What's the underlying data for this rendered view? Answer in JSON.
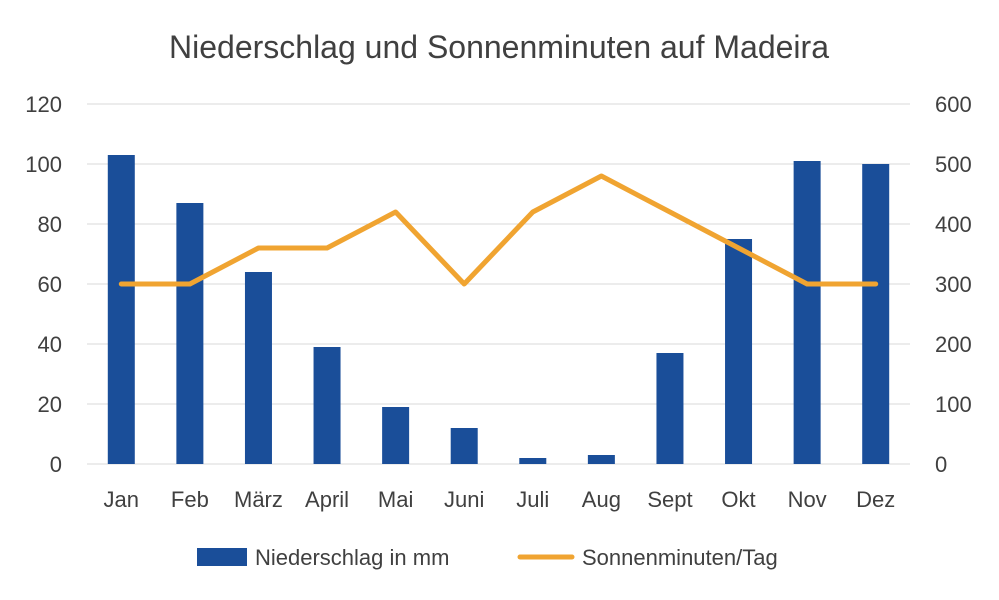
{
  "chart_data": {
    "type": "bar",
    "title": "Niederschlag und Sonnenminuten auf Madeira",
    "categories": [
      "Jan",
      "Feb",
      "März",
      "April",
      "Mai",
      "Juni",
      "Juli",
      "Aug",
      "Sept",
      "Okt",
      "Nov",
      "Dez"
    ],
    "series": [
      {
        "name": "Niederschlag in mm",
        "type": "bar",
        "axis": "left",
        "color": "#1a4e99",
        "values": [
          103,
          87,
          64,
          39,
          19,
          12,
          2,
          3,
          37,
          75,
          101,
          100
        ]
      },
      {
        "name": "Sonnenminuten/Tag",
        "type": "line",
        "axis": "right",
        "color": "#f0a431",
        "values": [
          300,
          300,
          360,
          360,
          420,
          300,
          420,
          480,
          420,
          360,
          300,
          300
        ]
      }
    ],
    "y_left": {
      "ylim": [
        0,
        120
      ],
      "ticks": [
        "0",
        "20",
        "40",
        "60",
        "80",
        "100",
        "120"
      ]
    },
    "y_right": {
      "ylim": [
        0,
        600
      ],
      "ticks": [
        "0",
        "100",
        "200",
        "300",
        "400",
        "500",
        "600"
      ]
    },
    "grid": true,
    "legend": "bottom"
  }
}
